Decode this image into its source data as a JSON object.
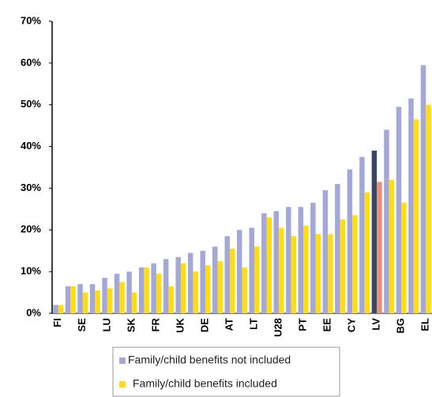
{
  "chart_data": {
    "type": "bar",
    "categories": [
      "FI",
      null,
      "SE",
      null,
      "LU",
      null,
      "SK",
      null,
      "FR",
      null,
      "UK",
      null,
      "DE",
      null,
      "AT",
      null,
      "LT",
      null,
      "U28",
      null,
      "PT",
      null,
      "EE",
      null,
      "CY",
      null,
      "LV",
      null,
      "BG",
      null,
      "EL"
    ],
    "series": [
      {
        "name": "Family/child benefits not included",
        "color": "#a4a8d8",
        "highlight_color": "#3b4663",
        "values": [
          2,
          6.5,
          7,
          7,
          8.5,
          9.5,
          10,
          11,
          12,
          13,
          13.5,
          14.5,
          15,
          16,
          18.5,
          20,
          20.5,
          24,
          24.5,
          25.5,
          25.5,
          26.5,
          29.5,
          31,
          34.5,
          37.5,
          39,
          44,
          49.5,
          51.5,
          59.5
        ]
      },
      {
        "name": "Family/child benefits included",
        "color": "#ffdc14",
        "highlight_color": "#e9907a",
        "values": [
          2,
          6.5,
          5,
          5.5,
          6,
          7.5,
          5,
          11,
          9.5,
          6.5,
          12,
          10,
          11.5,
          12.5,
          15.5,
          11,
          16,
          23,
          20.5,
          18.5,
          21,
          19,
          19,
          22.5,
          23.5,
          29,
          31.5,
          32,
          26.5,
          46.5,
          50
        ]
      }
    ],
    "highlight_category": "LV",
    "ylim": [
      0,
      70
    ],
    "yticks": [
      {
        "value": 0,
        "label": "0%"
      },
      {
        "value": 10,
        "label": "10%"
      },
      {
        "value": 20,
        "label": "20%"
      },
      {
        "value": 30,
        "label": "30%"
      },
      {
        "value": 40,
        "label": "40%"
      },
      {
        "value": 50,
        "label": "50%"
      },
      {
        "value": 60,
        "label": "60%"
      },
      {
        "value": 70,
        "label": "70%"
      }
    ],
    "grid": false
  }
}
